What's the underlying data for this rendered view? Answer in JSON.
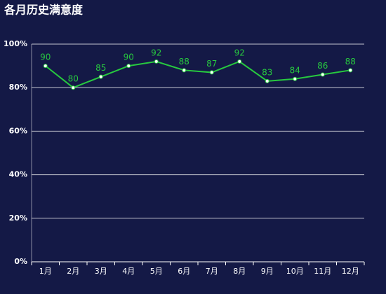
{
  "chart_data": {
    "type": "line",
    "title": "各月历史满意度",
    "categories": [
      "1月",
      "2月",
      "3月",
      "4月",
      "5月",
      "6月",
      "7月",
      "8月",
      "9月",
      "10月",
      "11月",
      "12月"
    ],
    "values": [
      90,
      80,
      85,
      90,
      92,
      88,
      87,
      92,
      83,
      84,
      86,
      88
    ],
    "color": "#27c93f",
    "ylim": [
      0,
      100
    ],
    "yticks": [
      {
        "value": 0,
        "label": "0%"
      },
      {
        "value": 20,
        "label": "20%"
      },
      {
        "value": 40,
        "label": "40%"
      },
      {
        "value": 60,
        "label": "60%"
      },
      {
        "value": 80,
        "label": "80%"
      },
      {
        "value": 100,
        "label": "100%"
      }
    ],
    "grid": true
  }
}
